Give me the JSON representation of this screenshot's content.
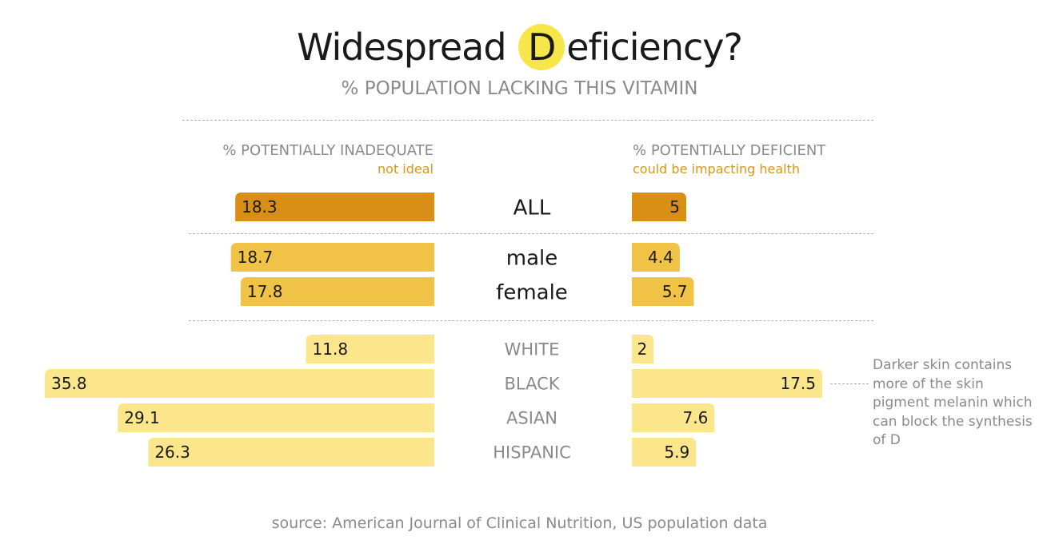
{
  "title_pre": "Widespread ",
  "title_letter": "D",
  "title_post": "eficiency?",
  "subtitle": "% POPULATION LACKING THIS VITAMIN",
  "left_header": "% POTENTIALLY INADEQUATE",
  "left_subheader": "not ideal",
  "right_header": "% POTENTIALLY DEFICIENT",
  "right_subheader": "could be impacting health",
  "note": "Darker skin contains more of the skin pigment melanin which can block the synthesis of D",
  "source": "source: American Journal of Clinical Nutrition, US population data",
  "colors": {
    "all": "#d98f16",
    "sex": "#f0c245",
    "ethnicity": "#fbe68c",
    "label_gray": "#8a8a8a",
    "label_dark": "#1a1a1a"
  },
  "chart_data": {
    "type": "bar",
    "orientation": "horizontal-diverging",
    "categories": [
      "ALL",
      "male",
      "female",
      "WHITE",
      "BLACK",
      "ASIAN",
      "HISPANIC"
    ],
    "series": [
      {
        "name": "% POTENTIALLY INADEQUATE",
        "values": [
          18.3,
          18.7,
          17.8,
          11.8,
          35.8,
          29.1,
          26.3
        ]
      },
      {
        "name": "% POTENTIALLY DEFICIENT",
        "values": [
          5,
          4.4,
          5.7,
          2,
          17.5,
          7.6,
          5.9
        ]
      }
    ],
    "groups": [
      "all",
      "sex",
      "sex",
      "ethnicity",
      "ethnicity",
      "ethnicity",
      "ethnicity"
    ]
  }
}
